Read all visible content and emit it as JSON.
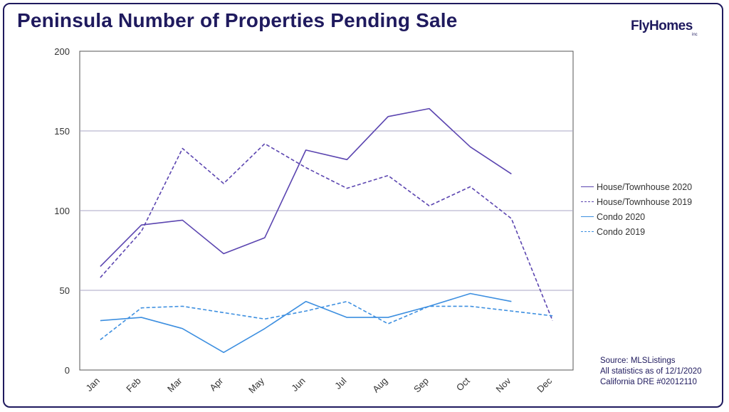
{
  "title": "Peninsula Number of Properties Pending Sale",
  "logo": {
    "text": "FlyHomes",
    "sub": "inc"
  },
  "source_lines": [
    "Source: MLSListings",
    "All statistics as of 12/1/2020",
    "California DRE #02012110"
  ],
  "colors": {
    "accent": "#1f1a5e",
    "house": "#5b45b0",
    "condo": "#3d8fe0",
    "grid": "#a9a6c6"
  },
  "chart_data": {
    "type": "line",
    "categories": [
      "Jan",
      "Feb",
      "Mar",
      "Apr",
      "May",
      "Jun",
      "Jul",
      "Aug",
      "Sep",
      "Oct",
      "Nov",
      "Dec"
    ],
    "ylim": [
      0,
      200
    ],
    "yticks": [
      0,
      50,
      100,
      150,
      200
    ],
    "grid": true,
    "legend_position": "right",
    "series": [
      {
        "name": "House/Townhouse 2020",
        "color": "#5b45b0",
        "dash": false,
        "values": [
          65,
          91,
          94,
          73,
          83,
          138,
          132,
          159,
          164,
          140,
          123,
          null
        ]
      },
      {
        "name": "House/Townhouse 2019",
        "color": "#5b45b0",
        "dash": true,
        "values": [
          58,
          87,
          139,
          117,
          142,
          127,
          114,
          122,
          103,
          115,
          95,
          31
        ]
      },
      {
        "name": "Condo 2020",
        "color": "#3d8fe0",
        "dash": false,
        "values": [
          31,
          33,
          26,
          11,
          26,
          43,
          33,
          33,
          40,
          48,
          43,
          null
        ]
      },
      {
        "name": "Condo 2019",
        "color": "#3d8fe0",
        "dash": true,
        "values": [
          19,
          39,
          40,
          36,
          32,
          37,
          43,
          29,
          40,
          40,
          37,
          34
        ]
      }
    ]
  }
}
